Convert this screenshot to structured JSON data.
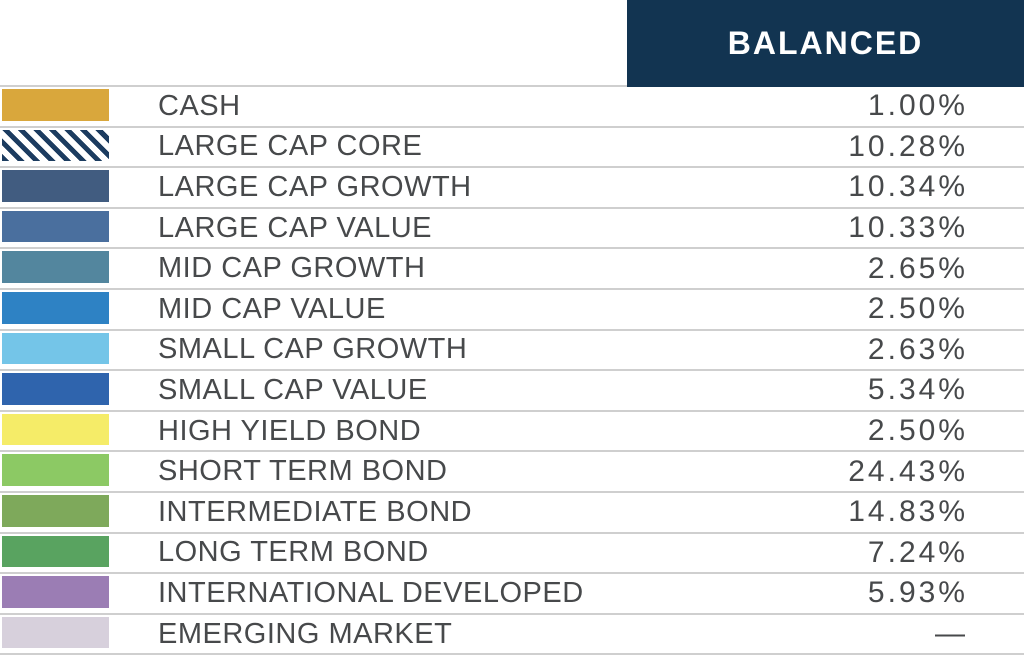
{
  "header": {
    "label": "BALANCED",
    "bg_color": "#123451",
    "text_color": "#ffffff"
  },
  "table": {
    "rows": [
      {
        "name": "CASH",
        "value": "1.00%",
        "swatch": "#d9a73c",
        "pattern": "solid"
      },
      {
        "name": "LARGE CAP CORE",
        "value": "10.28%",
        "swatch": "#1c3c60",
        "pattern": "diagonal-stripes"
      },
      {
        "name": "LARGE CAP GROWTH",
        "value": "10.34%",
        "swatch": "#415c80",
        "pattern": "solid"
      },
      {
        "name": "LARGE CAP VALUE",
        "value": "10.33%",
        "swatch": "#4a6f9e",
        "pattern": "solid"
      },
      {
        "name": "MID CAP GROWTH",
        "value": "2.65%",
        "swatch": "#53869e",
        "pattern": "solid"
      },
      {
        "name": "MID CAP VALUE",
        "value": "2.50%",
        "swatch": "#2e82c4",
        "pattern": "solid"
      },
      {
        "name": "SMALL CAP GROWTH",
        "value": "2.63%",
        "swatch": "#74c5e8",
        "pattern": "solid"
      },
      {
        "name": "SMALL CAP VALUE",
        "value": "5.34%",
        "swatch": "#2f64ad",
        "pattern": "solid"
      },
      {
        "name": "HIGH YIELD BOND",
        "value": "2.50%",
        "swatch": "#f5ec68",
        "pattern": "solid"
      },
      {
        "name": "SHORT TERM BOND",
        "value": "24.43%",
        "swatch": "#8cc964",
        "pattern": "solid"
      },
      {
        "name": "INTERMEDIATE BOND",
        "value": "14.83%",
        "swatch": "#7ea95b",
        "pattern": "solid"
      },
      {
        "name": "LONG TERM BOND",
        "value": "7.24%",
        "swatch": "#59a360",
        "pattern": "solid"
      },
      {
        "name": "INTERNATIONAL DEVELOPED",
        "value": "5.93%",
        "swatch": "#9b7db4",
        "pattern": "solid"
      },
      {
        "name": "EMERGING MARKET",
        "value": "—",
        "swatch": "#d7d0dc",
        "pattern": "solid"
      }
    ],
    "divider_color": "#cfcfcf",
    "text_color": "#47494b"
  },
  "chart_data": {
    "type": "table",
    "title": "BALANCED",
    "value_format": "percent",
    "categories": [
      "CASH",
      "LARGE CAP CORE",
      "LARGE CAP GROWTH",
      "LARGE CAP VALUE",
      "MID CAP GROWTH",
      "MID CAP VALUE",
      "SMALL CAP GROWTH",
      "SMALL CAP VALUE",
      "HIGH YIELD BOND",
      "SHORT TERM BOND",
      "INTERMEDIATE BOND",
      "LONG TERM BOND",
      "INTERNATIONAL DEVELOPED",
      "EMERGING MARKET"
    ],
    "values": [
      1.0,
      10.28,
      10.34,
      10.33,
      2.65,
      2.5,
      2.63,
      5.34,
      2.5,
      24.43,
      14.83,
      7.24,
      5.93,
      null
    ],
    "colors": [
      "#d9a73c",
      "#1c3c60",
      "#415c80",
      "#4a6f9e",
      "#53869e",
      "#2e82c4",
      "#74c5e8",
      "#2f64ad",
      "#f5ec68",
      "#8cc964",
      "#7ea95b",
      "#59a360",
      "#9b7db4",
      "#d7d0dc"
    ]
  }
}
